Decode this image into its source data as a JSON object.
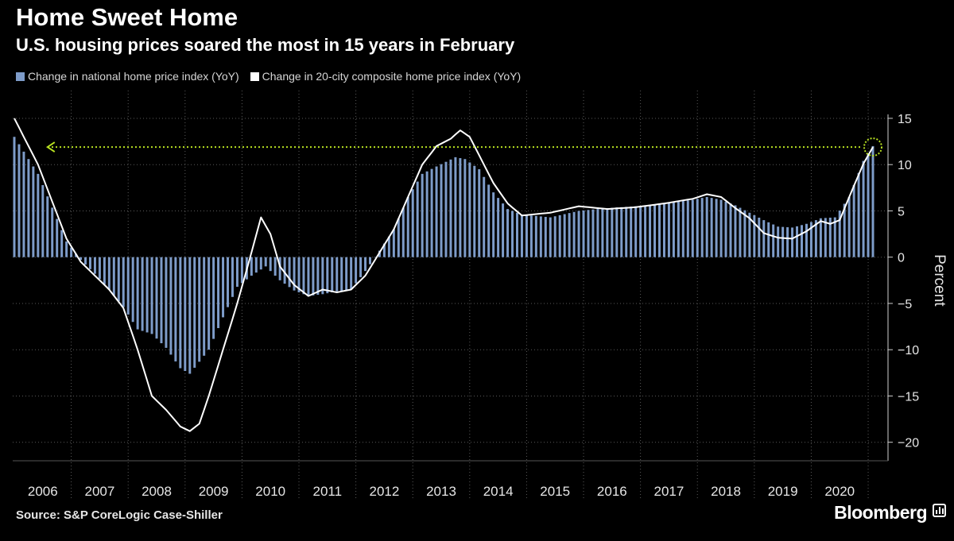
{
  "header": {
    "title": "Home Sweet Home",
    "subtitle": "U.S. housing prices soared the most in 15 years in February"
  },
  "footer": {
    "source": "Source: S&P CoreLogic Case-Shiller",
    "brand": "Bloomberg"
  },
  "colors": {
    "bars": "#7e9cc9",
    "line": "#ffffff",
    "annotation": "#b7e021",
    "grid": "#5a5a5a",
    "background": "#000000"
  },
  "chart_data": {
    "type": "bar",
    "title": "Home Sweet Home",
    "subtitle": "U.S. housing prices soared the most in 15 years in February",
    "xlabel": "",
    "ylabel": "Percent",
    "ylim": [
      -22,
      18
    ],
    "yticks": [
      15,
      10,
      5,
      0,
      -5,
      -10,
      -15,
      -20
    ],
    "x_start": "2006-01",
    "x_end": "2021-02",
    "year_labels": [
      "2006",
      "2007",
      "2008",
      "2009",
      "2010",
      "2011",
      "2012",
      "2013",
      "2014",
      "2015",
      "2016",
      "2017",
      "2018",
      "2019",
      "2020"
    ],
    "grid": true,
    "legend_position": "top-left",
    "annotation": "dotted arrow at the February 2021 level (12%) pointing back to 2006",
    "series": [
      {
        "name": "Change in national home price index (YoY)",
        "kind": "bar",
        "frequency": "monthly",
        "points": [
          [
            "2006-01",
            13.0
          ],
          [
            "2006-06",
            9.0
          ],
          [
            "2006-12",
            1.7
          ],
          [
            "2007-03",
            -0.3
          ],
          [
            "2007-06",
            -1.8
          ],
          [
            "2007-09",
            -3.5
          ],
          [
            "2007-12",
            -5.4
          ],
          [
            "2008-03",
            -7.8
          ],
          [
            "2008-06",
            -8.3
          ],
          [
            "2008-09",
            -9.8
          ],
          [
            "2008-12",
            -12.0
          ],
          [
            "2009-02",
            -12.6
          ],
          [
            "2009-06",
            -10.0
          ],
          [
            "2009-09",
            -6.5
          ],
          [
            "2009-12",
            -3.2
          ],
          [
            "2010-03",
            -2.0
          ],
          [
            "2010-06",
            -1.0
          ],
          [
            "2010-09",
            -2.5
          ],
          [
            "2010-12",
            -3.6
          ],
          [
            "2011-03",
            -4.2
          ],
          [
            "2011-06",
            -4.0
          ],
          [
            "2011-09",
            -3.7
          ],
          [
            "2011-12",
            -3.5
          ],
          [
            "2012-03",
            -1.5
          ],
          [
            "2012-06",
            0.7
          ],
          [
            "2012-09",
            3.0
          ],
          [
            "2012-12",
            6.5
          ],
          [
            "2013-03",
            9.0
          ],
          [
            "2013-06",
            9.8
          ],
          [
            "2013-10",
            10.8
          ],
          [
            "2013-12",
            10.6
          ],
          [
            "2014-03",
            9.5
          ],
          [
            "2014-06",
            7.0
          ],
          [
            "2014-09",
            5.2
          ],
          [
            "2014-12",
            4.6
          ],
          [
            "2015-06",
            4.3
          ],
          [
            "2015-12",
            5.0
          ],
          [
            "2016-06",
            5.3
          ],
          [
            "2016-12",
            5.5
          ],
          [
            "2017-06",
            5.8
          ],
          [
            "2017-12",
            6.2
          ],
          [
            "2018-03",
            6.5
          ],
          [
            "2018-06",
            6.2
          ],
          [
            "2018-09",
            5.6
          ],
          [
            "2018-12",
            4.8
          ],
          [
            "2019-03",
            4.0
          ],
          [
            "2019-06",
            3.3
          ],
          [
            "2019-09",
            3.2
          ],
          [
            "2019-12",
            3.6
          ],
          [
            "2020-03",
            4.2
          ],
          [
            "2020-06",
            4.3
          ],
          [
            "2020-09",
            6.5
          ],
          [
            "2020-12",
            10.4
          ],
          [
            "2021-02",
            12.0
          ]
        ]
      },
      {
        "name": "Change in 20-city composite home price index (YoY)",
        "kind": "line",
        "points": [
          [
            "2006-01",
            15.0
          ],
          [
            "2006-06",
            10.0
          ],
          [
            "2006-12",
            2.0
          ],
          [
            "2007-03",
            -0.5
          ],
          [
            "2007-06",
            -2.0
          ],
          [
            "2007-09",
            -3.5
          ],
          [
            "2007-12",
            -5.5
          ],
          [
            "2008-03",
            -10.0
          ],
          [
            "2008-06",
            -15.0
          ],
          [
            "2008-09",
            -16.5
          ],
          [
            "2008-12",
            -18.3
          ],
          [
            "2009-02",
            -18.8
          ],
          [
            "2009-04",
            -18.0
          ],
          [
            "2009-06",
            -15.0
          ],
          [
            "2009-09",
            -10.0
          ],
          [
            "2009-12",
            -5.0
          ],
          [
            "2010-03",
            0.5
          ],
          [
            "2010-05",
            4.3
          ],
          [
            "2010-07",
            2.5
          ],
          [
            "2010-09",
            -1.0
          ],
          [
            "2010-12",
            -3.0
          ],
          [
            "2011-03",
            -4.2
          ],
          [
            "2011-06",
            -3.5
          ],
          [
            "2011-09",
            -3.8
          ],
          [
            "2011-12",
            -3.5
          ],
          [
            "2012-03",
            -2.0
          ],
          [
            "2012-06",
            0.5
          ],
          [
            "2012-09",
            3.0
          ],
          [
            "2012-12",
            6.5
          ],
          [
            "2013-03",
            10.0
          ],
          [
            "2013-06",
            12.0
          ],
          [
            "2013-09",
            12.8
          ],
          [
            "2013-11",
            13.7
          ],
          [
            "2014-01",
            13.0
          ],
          [
            "2014-03",
            11.0
          ],
          [
            "2014-06",
            8.0
          ],
          [
            "2014-09",
            5.8
          ],
          [
            "2014-12",
            4.5
          ],
          [
            "2015-06",
            4.8
          ],
          [
            "2015-12",
            5.5
          ],
          [
            "2016-06",
            5.2
          ],
          [
            "2016-12",
            5.4
          ],
          [
            "2017-06",
            5.8
          ],
          [
            "2017-12",
            6.3
          ],
          [
            "2018-03",
            6.8
          ],
          [
            "2018-06",
            6.5
          ],
          [
            "2018-09",
            5.3
          ],
          [
            "2018-12",
            4.2
          ],
          [
            "2019-03",
            2.6
          ],
          [
            "2019-06",
            2.1
          ],
          [
            "2019-09",
            2.0
          ],
          [
            "2019-12",
            2.8
          ],
          [
            "2020-03",
            3.9
          ],
          [
            "2020-05",
            3.6
          ],
          [
            "2020-07",
            4.0
          ],
          [
            "2020-09",
            6.5
          ],
          [
            "2020-12",
            10.1
          ],
          [
            "2021-02",
            11.9
          ]
        ]
      }
    ]
  }
}
